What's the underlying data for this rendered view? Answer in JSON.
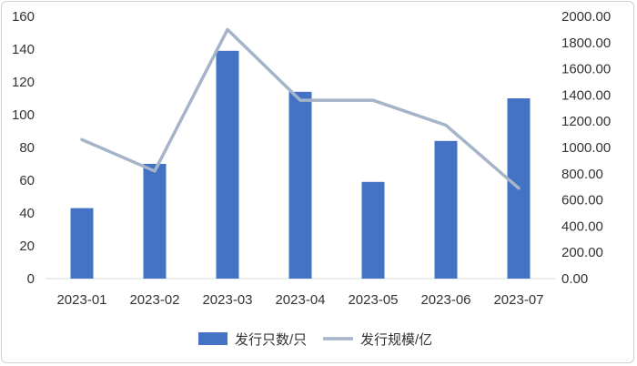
{
  "chart_data": {
    "type": "bar",
    "categories": [
      "2023-01",
      "2023-02",
      "2023-03",
      "2023-04",
      "2023-05",
      "2023-06",
      "2023-07"
    ],
    "series": [
      {
        "name": "发行只数/只",
        "type": "bar",
        "axis": "left",
        "color": "#4472C4",
        "values": [
          43,
          70,
          139,
          114,
          59,
          84,
          110
        ]
      },
      {
        "name": "发行规模/亿",
        "type": "line",
        "axis": "right",
        "color": "#A5B4C8",
        "values": [
          1060,
          820,
          1900,
          1360,
          1360,
          1170,
          690
        ]
      }
    ],
    "y_left": {
      "lim": [
        0,
        160
      ],
      "ticks": [
        "0",
        "20",
        "40",
        "60",
        "80",
        "100",
        "120",
        "140",
        "160"
      ]
    },
    "y_right": {
      "lim": [
        0,
        2000
      ],
      "ticks": [
        "0.00",
        "200.00",
        "400.00",
        "600.00",
        "800.00",
        "1000.00",
        "1200.00",
        "1400.00",
        "1600.00",
        "1800.00",
        "2000.00"
      ]
    },
    "grid": false,
    "legend": "bottom"
  }
}
